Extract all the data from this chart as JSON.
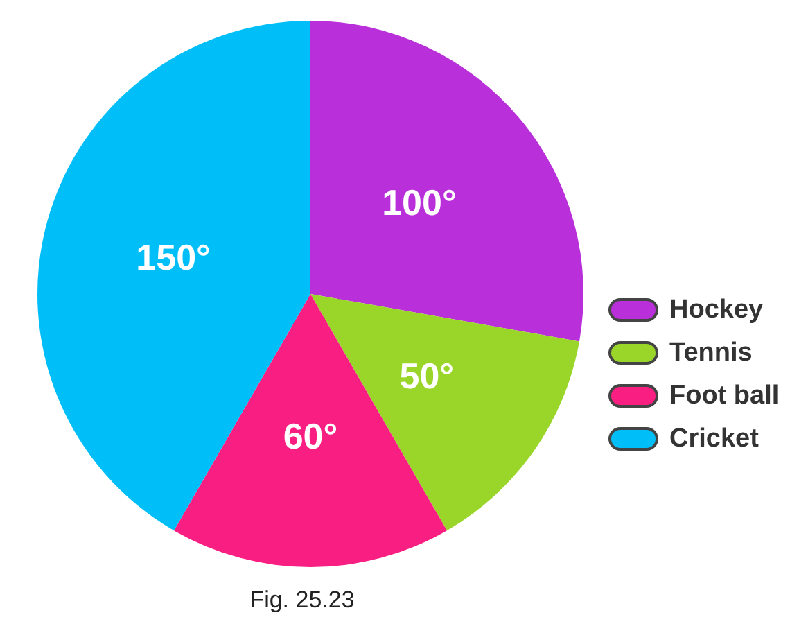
{
  "chart_data": {
    "type": "pie",
    "categories": [
      "Hockey",
      "Tennis",
      "Foot ball",
      "Cricket"
    ],
    "values": [
      100,
      50,
      60,
      150
    ],
    "colors": [
      "#b92fd9",
      "#9ad52a",
      "#f91f82",
      "#00bff8"
    ],
    "value_labels": [
      "100°",
      "50°",
      "60°",
      "150°"
    ],
    "legend": "right",
    "annotations": [
      "Fig. 25.23"
    ]
  }
}
